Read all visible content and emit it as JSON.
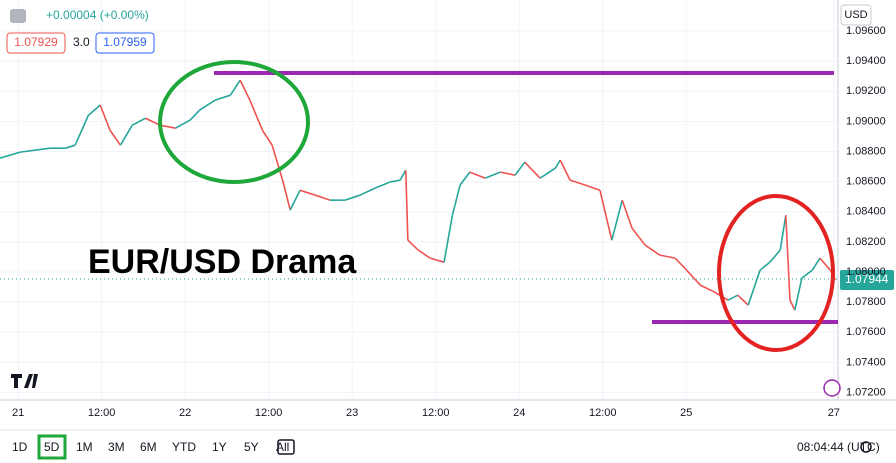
{
  "header": {
    "change": "+0.00004 (+0.00%)",
    "bid": "1.07929",
    "spread": "3.0",
    "ask": "1.07959",
    "currency": "USD"
  },
  "chart_data": {
    "type": "line",
    "annotation": "EUR/USD Drama",
    "last_price_label": "1.07944",
    "up_color": "#26a69a",
    "down_color": "#ef5350",
    "grid": true,
    "x": [
      -2.6,
      0.3,
      2.4,
      4.6,
      6.8,
      8.2,
      10.1,
      11.8,
      13.2,
      14.7,
      16.4,
      18.3,
      20.4,
      22.6,
      24.7,
      26.1,
      28.3,
      30.5,
      31.9,
      33.3,
      35.1,
      36.5,
      38.0,
      39.1,
      40.5,
      42.7,
      44.8,
      47.0,
      49.1,
      51.3,
      53.4,
      54.9,
      55.7,
      56.0,
      57.5,
      59.2,
      61.2,
      62.4,
      63.5,
      64.9,
      67.1,
      69.3,
      71.4,
      72.8,
      75.0,
      77.2,
      77.9,
      79.3,
      81.5,
      83.6,
      85.3,
      86.8,
      88.2,
      90.1,
      92.2,
      94.4,
      95.8,
      98.0,
      100.1,
      102.0,
      103.4,
      104.9,
      106.6,
      108.0,
      109.5,
      110.3,
      110.9,
      111.6,
      112.6,
      114.1,
      115.2,
      116.7,
      117.4
    ],
    "values": [
      1.08756,
      1.08796,
      1.08809,
      1.08822,
      1.08822,
      1.08842,
      1.09041,
      1.09108,
      1.08942,
      1.08842,
      1.08975,
      1.09021,
      1.08975,
      1.08955,
      1.09008,
      1.09075,
      1.09141,
      1.09174,
      1.09274,
      1.09141,
      1.08942,
      1.08842,
      1.0861,
      1.08411,
      1.08543,
      1.0851,
      1.08477,
      1.08477,
      1.0851,
      1.08557,
      1.08597,
      1.0861,
      1.08676,
      1.08211,
      1.08145,
      1.08092,
      1.08065,
      1.08377,
      1.08577,
      1.08663,
      1.08623,
      1.08663,
      1.08643,
      1.08729,
      1.08623,
      1.0869,
      1.08743,
      1.0861,
      1.08577,
      1.08543,
      1.08211,
      1.08477,
      1.08291,
      1.08178,
      1.08112,
      1.08092,
      1.08025,
      1.07913,
      1.07866,
      1.07813,
      1.07846,
      1.0778,
      1.08012,
      1.08065,
      1.08145,
      1.08377,
      1.07813,
      1.07747,
      1.07959,
      1.08012,
      1.08092,
      1.08012,
      1.07946
    ],
    "xlim": [
      -2.6,
      117.8
    ],
    "xticks": [
      {
        "value": 0,
        "label": "21"
      },
      {
        "value": 12,
        "label": "12:00"
      },
      {
        "value": 24,
        "label": "22"
      },
      {
        "value": 36,
        "label": "12:00"
      },
      {
        "value": 48,
        "label": "23"
      },
      {
        "value": 60,
        "label": "12:00"
      },
      {
        "value": 72,
        "label": "24"
      },
      {
        "value": 84,
        "label": "12:00"
      },
      {
        "value": 96,
        "label": "25"
      },
      {
        "value": 117.2,
        "label": "27"
      }
    ],
    "ylim": [
      1.0715,
      1.0966
    ],
    "yticks": [
      {
        "value": 1.072,
        "label": "1.07200"
      },
      {
        "value": 1.074,
        "label": "1.07400"
      },
      {
        "value": 1.076,
        "label": "1.07600"
      },
      {
        "value": 1.078,
        "label": "1.07800"
      },
      {
        "value": 1.08,
        "label": "1.08000"
      },
      {
        "value": 1.082,
        "label": "1.08200"
      },
      {
        "value": 1.084,
        "label": "1.08400"
      },
      {
        "value": 1.086,
        "label": "1.08600"
      },
      {
        "value": 1.088,
        "label": "1.08800"
      },
      {
        "value": 1.09,
        "label": "1.09000"
      },
      {
        "value": 1.092,
        "label": "1.09200"
      },
      {
        "value": 1.094,
        "label": "1.09400"
      },
      {
        "value": 1.096,
        "label": "1.09600"
      }
    ]
  },
  "toolbar": {
    "ranges": [
      "1D",
      "5D",
      "1M",
      "3M",
      "6M",
      "YTD",
      "1Y",
      "5Y",
      "All"
    ],
    "selected": 1,
    "time": "08:04:44 (UTC)"
  }
}
